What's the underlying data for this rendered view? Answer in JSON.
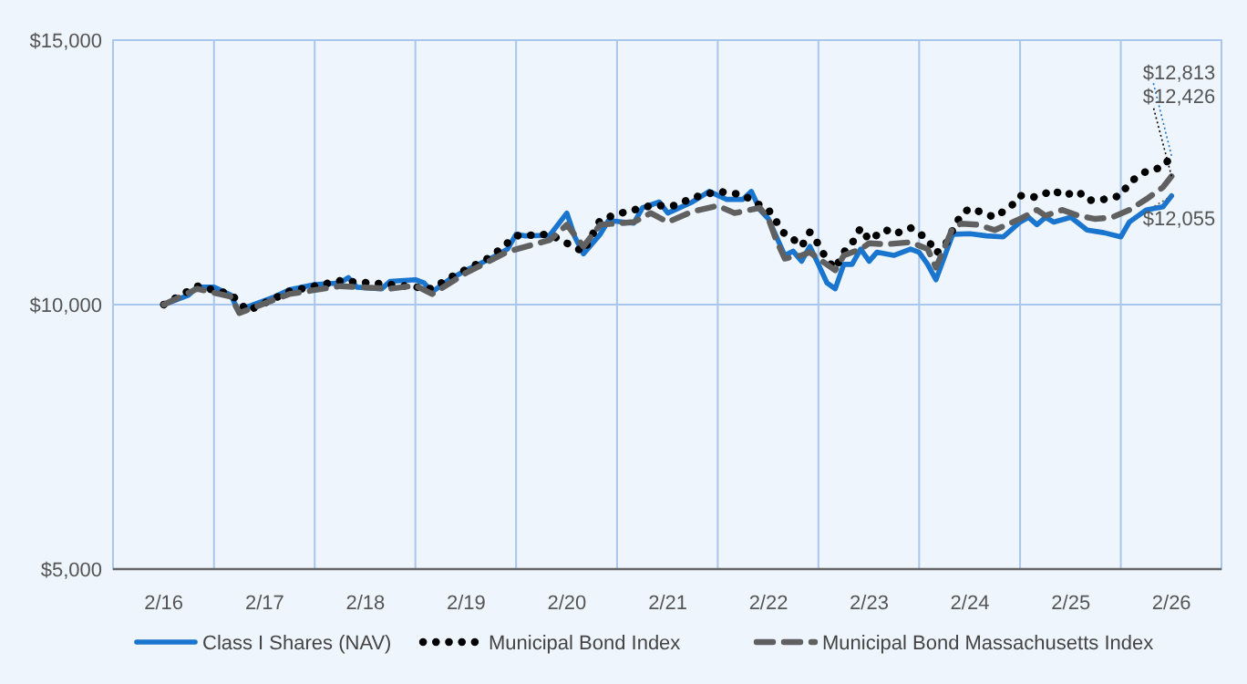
{
  "chart_data": {
    "type": "line",
    "xlim": [
      "2015-08",
      "2026-08"
    ],
    "ylim": [
      5000,
      15000
    ],
    "yticks": [
      {
        "value": 5000,
        "label": "$5,000"
      },
      {
        "value": 10000,
        "label": "$10,000"
      },
      {
        "value": 15000,
        "label": "$15,000"
      }
    ],
    "xticks": [
      {
        "value": "2016-02",
        "label": "2/16"
      },
      {
        "value": "2017-02",
        "label": "2/17"
      },
      {
        "value": "2018-02",
        "label": "2/18"
      },
      {
        "value": "2019-02",
        "label": "2/19"
      },
      {
        "value": "2020-02",
        "label": "2/20"
      },
      {
        "value": "2021-02",
        "label": "2/21"
      },
      {
        "value": "2022-02",
        "label": "2/22"
      },
      {
        "value": "2023-02",
        "label": "2/23"
      },
      {
        "value": "2024-02",
        "label": "2/24"
      },
      {
        "value": "2025-02",
        "label": "2/25"
      },
      {
        "value": "2026-02",
        "label": "2/26"
      },
      {
        "value": "2016-08",
        "label": null
      },
      {
        "value": "2017-08",
        "label": null
      },
      {
        "value": "2018-08",
        "label": null
      },
      {
        "value": "2019-08",
        "label": null
      },
      {
        "value": "2020-08",
        "label": null
      },
      {
        "value": "2021-08",
        "label": null
      },
      {
        "value": "2022-08",
        "label": null
      },
      {
        "value": "2023-08",
        "label": null
      },
      {
        "value": "2024-08",
        "label": null
      },
      {
        "value": "2025-08",
        "label": null
      }
    ],
    "grid": true,
    "legend": "bottom",
    "series": [
      {
        "name": "Class I Shares (NAV)",
        "color": "#1a75cf",
        "line_style": "solid",
        "x": [
          "2016-02",
          "2016-05",
          "2016-06",
          "2016-08",
          "2016-10",
          "2016-11",
          "2016-12",
          "2017-03",
          "2017-05",
          "2017-08",
          "2017-11",
          "2017-12",
          "2018-01",
          "2018-04",
          "2018-05",
          "2018-08",
          "2018-09",
          "2018-10",
          "2018-12",
          "2019-02",
          "2019-05",
          "2019-07",
          "2019-08",
          "2019-09",
          "2019-12",
          "2020-02",
          "2020-03",
          "2020-04",
          "2020-06",
          "2020-07",
          "2020-10",
          "2020-11",
          "2021-01",
          "2021-02",
          "2021-05",
          "2021-07",
          "2021-09",
          "2021-11",
          "2021-12",
          "2022-01",
          "2022-02",
          "2022-04",
          "2022-05",
          "2022-06",
          "2022-07",
          "2022-08",
          "2022-09",
          "2022-10",
          "2022-11",
          "2022-12",
          "2023-01",
          "2023-02",
          "2023-03",
          "2023-05",
          "2023-07",
          "2023-08",
          "2023-09",
          "2023-10",
          "2023-12",
          "2024-02",
          "2024-04",
          "2024-06",
          "2024-08",
          "2024-09",
          "2024-10",
          "2024-11",
          "2024-12",
          "2025-02",
          "2025-04",
          "2025-06",
          "2025-08",
          "2025-09",
          "2025-11",
          "2026-01",
          "2026-02"
        ],
        "values": [
          10000,
          10180,
          10330,
          10330,
          10180,
          9840,
          9960,
          10130,
          10280,
          10380,
          10410,
          10510,
          10330,
          10300,
          10440,
          10470,
          10410,
          10240,
          10470,
          10650,
          10870,
          11050,
          11330,
          11300,
          11310,
          11730,
          11280,
          10960,
          11330,
          11590,
          11540,
          11830,
          11940,
          11730,
          11940,
          12140,
          11990,
          11990,
          12140,
          11790,
          11620,
          10930,
          11010,
          10820,
          11100,
          10760,
          10410,
          10300,
          10760,
          10760,
          11050,
          10820,
          10990,
          10930,
          11050,
          10990,
          10760,
          10470,
          11330,
          11340,
          11300,
          11280,
          11560,
          11650,
          11510,
          11650,
          11560,
          11650,
          11410,
          11360,
          11280,
          11560,
          11790,
          11850,
          12055
        ]
      },
      {
        "name": "Municipal Bond Index",
        "color": "#000000",
        "line_style": "dotted",
        "x": [
          "2016-02",
          "2016-06",
          "2016-10",
          "2016-12",
          "2017-05",
          "2017-11",
          "2018-05",
          "2018-10",
          "2018-12",
          "2019-05",
          "2019-08",
          "2019-12",
          "2020-04",
          "2020-06",
          "2020-08",
          "2020-12",
          "2021-03",
          "2021-05",
          "2021-08",
          "2021-11",
          "2021-12",
          "2022-02",
          "2022-04",
          "2022-05",
          "2022-06",
          "2022-07",
          "2022-08",
          "2022-09",
          "2022-10",
          "2022-11",
          "2022-12",
          "2023-01",
          "2023-02",
          "2023-04",
          "2023-05",
          "2023-07",
          "2023-09",
          "2023-10",
          "2023-11",
          "2023-12",
          "2024-01",
          "2024-02",
          "2024-03",
          "2024-05",
          "2024-07",
          "2024-08",
          "2024-10",
          "2024-12",
          "2025-01",
          "2025-03",
          "2025-04",
          "2025-06",
          "2025-08",
          "2025-09",
          "2025-11",
          "2026-01",
          "2026-02"
        ],
        "values": [
          10000,
          10350,
          10200,
          9880,
          10250,
          10450,
          10380,
          10300,
          10500,
          10900,
          11300,
          11330,
          11000,
          11600,
          11710,
          11870,
          11870,
          12020,
          12140,
          12080,
          11970,
          11790,
          11330,
          11240,
          11100,
          11370,
          11140,
          10840,
          10680,
          10990,
          11160,
          11450,
          11220,
          11420,
          11330,
          11450,
          11240,
          10970,
          11100,
          11410,
          11710,
          11820,
          11770,
          11650,
          11870,
          12060,
          12030,
          12170,
          12060,
          12140,
          11970,
          11990,
          12060,
          12310,
          12520,
          12600,
          12813
        ]
      },
      {
        "name": "Municipal Bond Massachusetts Index",
        "color": "#606060",
        "line_style": "dashed",
        "x": [
          "2016-02",
          "2016-06",
          "2016-10",
          "2016-11",
          "2016-12",
          "2017-05",
          "2017-11",
          "2018-05",
          "2018-08",
          "2018-10",
          "2019-02",
          "2019-07",
          "2019-12",
          "2020-02",
          "2020-04",
          "2020-06",
          "2020-10",
          "2020-12",
          "2021-02",
          "2021-05",
          "2021-08",
          "2021-10",
          "2022-01",
          "2022-02",
          "2022-03",
          "2022-04",
          "2022-06",
          "2022-07",
          "2022-08",
          "2022-10",
          "2022-11",
          "2023-01",
          "2023-02",
          "2023-04",
          "2023-07",
          "2023-09",
          "2023-10",
          "2023-12",
          "2024-01",
          "2024-03",
          "2024-05",
          "2024-08",
          "2024-10",
          "2024-11",
          "2025-01",
          "2025-03",
          "2025-05",
          "2025-07",
          "2025-09",
          "2025-11",
          "2026-01",
          "2026-02"
        ],
        "values": [
          10000,
          10300,
          10150,
          9840,
          9900,
          10200,
          10350,
          10300,
          10360,
          10200,
          10600,
          11000,
          11220,
          11510,
          11100,
          11510,
          11560,
          11730,
          11560,
          11760,
          11870,
          11730,
          11830,
          11620,
          11220,
          10870,
          10930,
          10990,
          10870,
          10650,
          10930,
          11050,
          11160,
          11140,
          11180,
          11050,
          10700,
          11450,
          11530,
          11510,
          11410,
          11620,
          11790,
          11680,
          11790,
          11680,
          11620,
          11650,
          11790,
          11990,
          12220,
          12426
        ]
      }
    ],
    "annotations": [
      {
        "text": "$12,813",
        "x": "2026-02",
        "y": 12813
      },
      {
        "text": "$12,426",
        "x": "2026-02",
        "y": 12426
      },
      {
        "text": "$12,055",
        "x": "2026-02",
        "y": 12055
      }
    ]
  }
}
